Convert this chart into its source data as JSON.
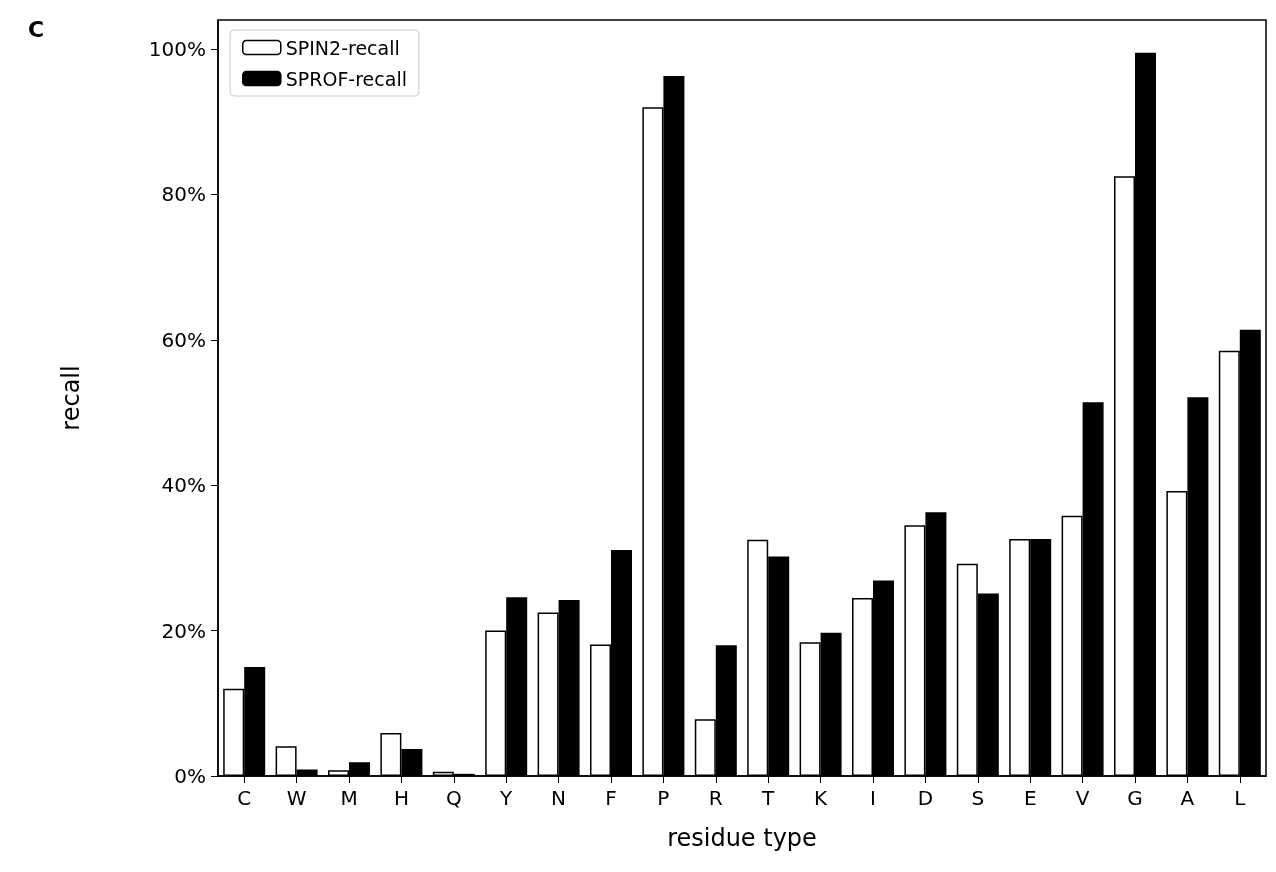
{
  "chart_data": {
    "type": "bar",
    "xlabel": "residue type",
    "ylabel": "recall",
    "annotations": [
      "C"
    ],
    "categories": [
      "C",
      "W",
      "M",
      "H",
      "Q",
      "Y",
      "N",
      "F",
      "P",
      "R",
      "T",
      "K",
      "I",
      "D",
      "S",
      "E",
      "V",
      "G",
      "A",
      "L"
    ],
    "series": [
      {
        "name": "SPIN2-recall",
        "color": "#ffffff",
        "values": [
          12.0,
          4.1,
          0.8,
          5.9,
          0.6,
          20.0,
          22.5,
          18.1,
          92.0,
          7.8,
          32.5,
          18.4,
          24.5,
          34.5,
          29.2,
          32.6,
          35.8,
          82.5,
          39.2,
          58.5
        ]
      },
      {
        "name": "SPROF-recall",
        "color": "#000000",
        "values": [
          15.0,
          0.9,
          1.9,
          3.7,
          0.3,
          24.6,
          24.2,
          31.1,
          96.3,
          18.0,
          30.2,
          19.7,
          26.9,
          36.3,
          25.1,
          32.6,
          51.4,
          99.5,
          52.1,
          61.4
        ]
      }
    ],
    "ylim": [
      0,
      104
    ],
    "yticks": [
      {
        "value": 0,
        "label": "0%"
      },
      {
        "value": 20,
        "label": "20%"
      },
      {
        "value": 40,
        "label": "40%"
      },
      {
        "value": 60,
        "label": "60%"
      },
      {
        "value": 80,
        "label": "80%"
      },
      {
        "value": 100,
        "label": "100%"
      }
    ],
    "grid": false,
    "legend": "top left"
  }
}
